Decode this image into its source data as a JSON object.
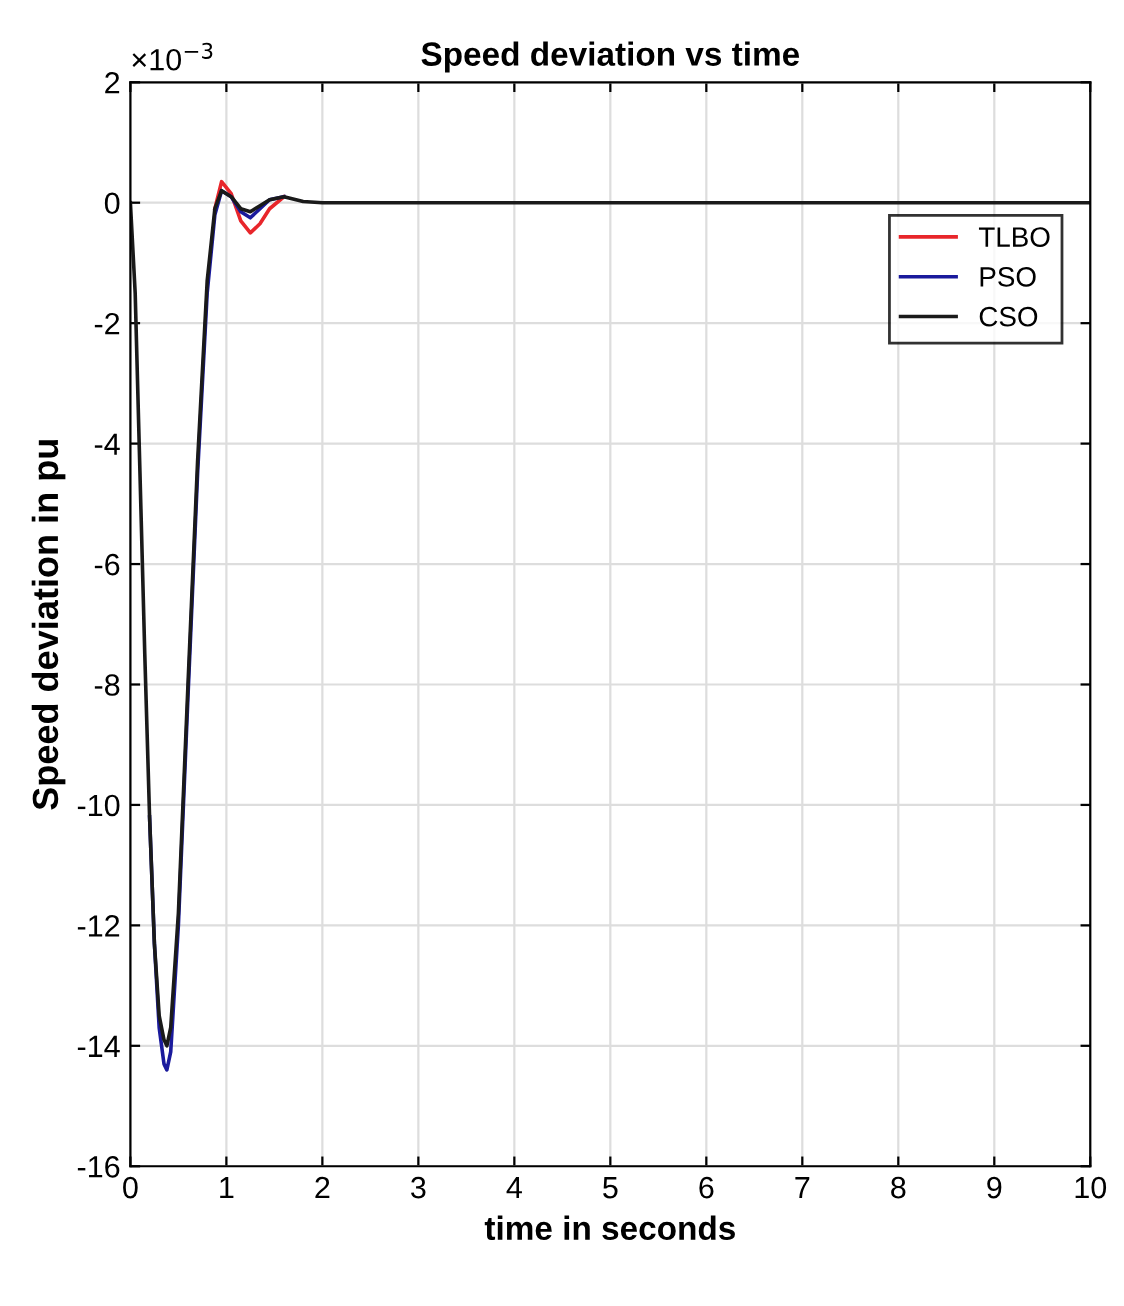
{
  "chart_data": {
    "type": "line",
    "title": "Speed deviation vs time",
    "xlabel": "time in seconds",
    "ylabel": "Speed deviation in pu",
    "annotations": [
      "×10$^{−3}$"
    ],
    "series": [
      {
        "name": "TLBO",
        "color": "#e8262b",
        "x": [
          0.88,
          0.95,
          1.05,
          1.15,
          1.25,
          1.35,
          1.45,
          1.6
        ],
        "values": [
          -0.1,
          0.35,
          0.15,
          -0.3,
          -0.5,
          -0.35,
          -0.1,
          0.1
        ]
      },
      {
        "name": "PSO",
        "color": "#1a1a9c",
        "x": [
          0.2,
          0.25,
          0.3,
          0.35,
          0.38,
          0.42,
          0.5,
          0.6,
          0.7,
          0.8,
          0.88,
          0.95,
          1.05,
          1.15,
          1.25,
          1.35,
          1.45,
          1.6
        ],
        "values": [
          -10.2,
          -12.3,
          -13.7,
          -14.3,
          -14.4,
          -14.1,
          -12.0,
          -8.2,
          -4.5,
          -1.5,
          -0.2,
          0.2,
          0.1,
          -0.15,
          -0.25,
          -0.1,
          0.05,
          0.1
        ]
      },
      {
        "name": "CSO",
        "color": "#1a1a1a",
        "x": [
          0,
          0.05,
          0.1,
          0.15,
          0.2,
          0.25,
          0.3,
          0.35,
          0.38,
          0.42,
          0.5,
          0.6,
          0.7,
          0.8,
          0.88,
          0.95,
          1.05,
          1.15,
          1.25,
          1.35,
          1.45,
          1.6,
          1.8,
          2.0,
          3,
          5,
          10
        ],
        "values": [
          0,
          -1.5,
          -4.5,
          -7.5,
          -10.2,
          -12.3,
          -13.5,
          -13.9,
          -14.0,
          -13.7,
          -11.8,
          -8.0,
          -4.3,
          -1.3,
          -0.1,
          0.2,
          0.1,
          -0.1,
          -0.15,
          -0.05,
          0.05,
          0.1,
          0.02,
          0,
          0,
          0,
          0
        ]
      }
    ],
    "xlim": [
      0,
      10
    ],
    "xticks": [
      0,
      1,
      2,
      3,
      4,
      5,
      6,
      7,
      8,
      9,
      10
    ],
    "ylim": [
      -16,
      2
    ],
    "yticks": [
      -16,
      -14,
      -12,
      -10,
      -8,
      -6,
      -4,
      -2,
      0,
      2
    ],
    "grid": true,
    "legend": "top right",
    "marker": "none",
    "line_style": "solid"
  }
}
